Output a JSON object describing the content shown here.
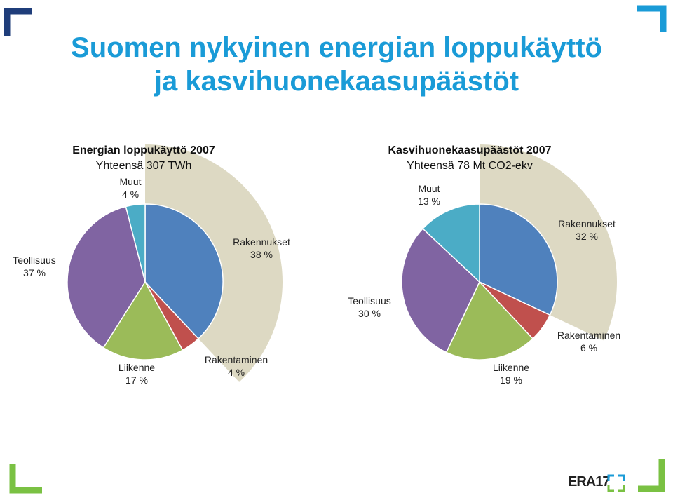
{
  "page": {
    "title_line1": "Suomen nykyinen energian loppukäyttö",
    "title_line2": "ja kasvihuonekaasupäästöt",
    "logo_text": "ERA17"
  },
  "colors": {
    "title": "#1a9bd7",
    "rakennukset": "#4f81bd",
    "rakentaminen": "#c0504d",
    "liikenne": "#9bbb59",
    "teollisuus": "#8064a2",
    "muut": "#4bacc6",
    "highlight_arc": "#ddd9c3",
    "corner_navy": "#1f3d7a",
    "corner_cyan": "#1a9bd7",
    "corner_green": "#7ac143"
  },
  "chart_data": [
    {
      "type": "pie",
      "title": "Energian loppukäyttö 2007",
      "subtitle": "Yhteensä 307 TWh",
      "slices": [
        {
          "name": "Rakennukset",
          "pct": "38 %",
          "value": 38
        },
        {
          "name": "Rakentaminen",
          "pct": "4 %",
          "value": 4
        },
        {
          "name": "Liikenne",
          "pct": "17 %",
          "value": 17
        },
        {
          "name": "Teollisuus",
          "pct": "37 %",
          "value": 37
        },
        {
          "name": "Muut",
          "pct": "4 %",
          "value": 4
        }
      ]
    },
    {
      "type": "pie",
      "title": "Kasvihuonekaasupäästöt 2007",
      "subtitle": "Yhteensä 78 Mt CO2-ekv",
      "slices": [
        {
          "name": "Rakennukset",
          "pct": "32 %",
          "value": 32
        },
        {
          "name": "Rakentaminen",
          "pct": "6 %",
          "value": 6
        },
        {
          "name": "Liikenne",
          "pct": "19 %",
          "value": 19
        },
        {
          "name": "Teollisuus",
          "pct": "30 %",
          "value": 30
        },
        {
          "name": "Muut",
          "pct": "13 %",
          "value": 13
        }
      ]
    }
  ]
}
